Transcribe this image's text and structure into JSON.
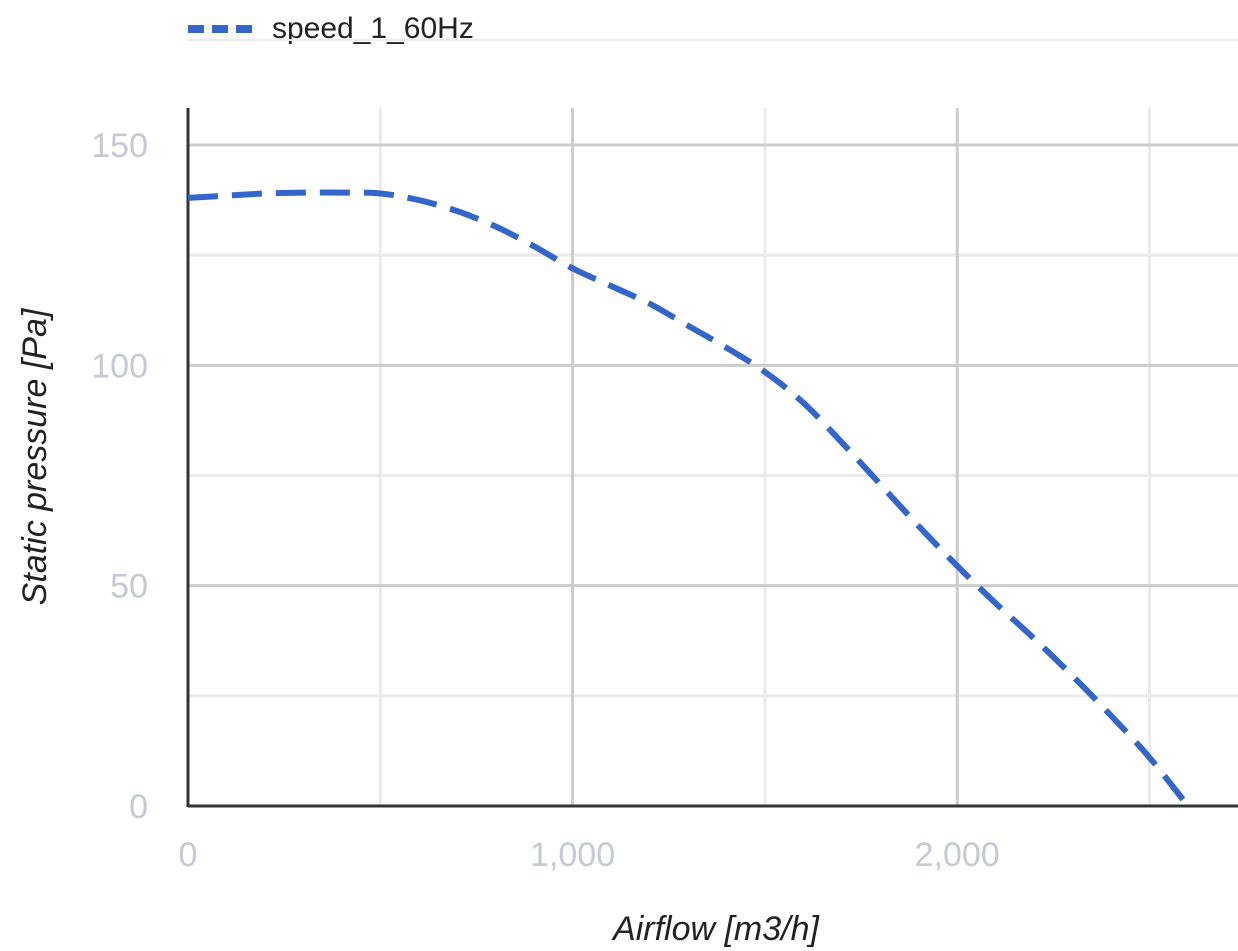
{
  "colors": {
    "series": "#3366cc",
    "grid_major": "#cccccc",
    "grid_minor": "#ebebeb",
    "axis": "#333333",
    "tick_text": "#c4c9d6",
    "title_text": "#222222"
  },
  "chart_data": {
    "type": "line",
    "title": "",
    "xlabel": "Airflow [m3/h]",
    "ylabel": "Static pressure [Pa]",
    "xlim": [
      0,
      2700
    ],
    "ylim": [
      0,
      150
    ],
    "xticks": [
      0,
      1000,
      2000
    ],
    "xtick_labels": [
      "0",
      "1,000",
      "2,000"
    ],
    "yticks": [
      0,
      50,
      100,
      150
    ],
    "ytick_labels": [
      "0",
      "50",
      "100",
      "150"
    ],
    "x_minor_ticks": [
      500,
      1500,
      2500
    ],
    "y_minor_ticks": [
      25,
      75,
      125
    ],
    "grid": true,
    "legend_position": "top",
    "series": [
      {
        "name": "speed_1_60Hz",
        "line_style": "dashed",
        "x": [
          0,
          100,
          200,
          300,
          400,
          500,
          600,
          700,
          800,
          900,
          1000,
          1100,
          1200,
          1300,
          1400,
          1500,
          1600,
          1700,
          1800,
          1900,
          2000,
          2100,
          2200,
          2300,
          2400,
          2500,
          2600
        ],
        "y": [
          138,
          138.5,
          139,
          139.2,
          139.2,
          139,
          137.5,
          135,
          131.5,
          127,
          122,
          118,
          114,
          109,
          104,
          98.5,
          91.5,
          82.5,
          73,
          63.5,
          54.5,
          46,
          38,
          29.5,
          20.5,
          11,
          0
        ]
      }
    ]
  }
}
